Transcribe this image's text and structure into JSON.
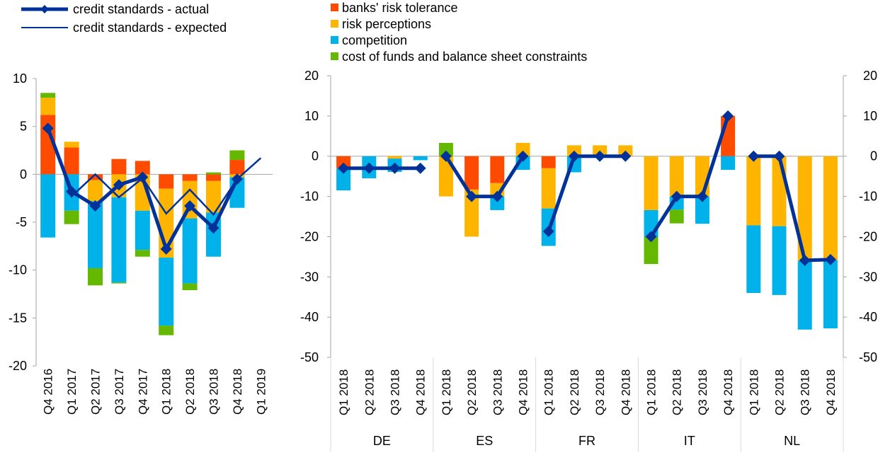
{
  "colors": {
    "banks_risk_tolerance": "#ff4b00",
    "risk_perceptions": "#ffb400",
    "competition": "#00b1ea",
    "cost_of_funds": "#65b800",
    "actual": "#003299",
    "expected": "#003299",
    "axis": "#a6a6a6",
    "gridline": "#d9d9d9"
  },
  "legend_left": [
    {
      "key": "actual",
      "label": "credit standards - actual"
    },
    {
      "key": "expected",
      "label": "credit standards - expected"
    }
  ],
  "legend_right": [
    {
      "key": "banks_risk_tolerance",
      "label": "banks' risk tolerance"
    },
    {
      "key": "risk_perceptions",
      "label": "risk perceptions"
    },
    {
      "key": "competition",
      "label": "competition"
    },
    {
      "key": "cost_of_funds",
      "label": "cost of funds and balance sheet constraints"
    }
  ],
  "chart_data": [
    {
      "type": "bar",
      "stacked": true,
      "ylim": [
        -20,
        10
      ],
      "yticks": [
        10,
        5,
        0,
        -5,
        -10,
        -15,
        -20
      ],
      "categories": [
        "Q4 2016",
        "Q1 2017",
        "Q2 2017",
        "Q3 2017",
        "Q4 2017",
        "Q1 2018",
        "Q2 2018",
        "Q3 2018",
        "Q4 2018",
        "Q1 2019"
      ],
      "series": [
        {
          "name": "banks' risk tolerance",
          "key": "banks_risk_tolerance",
          "values": [
            6.2,
            2.8,
            -0.6,
            1.6,
            1.4,
            -1.5,
            -0.7,
            -0.7,
            1.5,
            null
          ]
        },
        {
          "name": "risk perceptions",
          "key": "risk_perceptions",
          "values": [
            1.8,
            0.6,
            -2.2,
            -2.4,
            -3.8,
            -7.2,
            -3.9,
            -3.3,
            -0.3,
            null
          ]
        },
        {
          "name": "competition",
          "key": "competition",
          "values": [
            -6.6,
            -3.8,
            -7.0,
            -8.9,
            -4.1,
            -7.1,
            -6.8,
            -4.6,
            -3.2,
            null
          ]
        },
        {
          "name": "cost of funds and balance sheet constraints",
          "key": "cost_of_funds",
          "values": [
            0.5,
            -1.4,
            -1.8,
            -0.1,
            -0.7,
            -1.0,
            -0.7,
            0.2,
            1.0,
            null
          ]
        }
      ],
      "lines": [
        {
          "name": "credit standards - actual",
          "key": "actual",
          "values": [
            4.8,
            -1.8,
            -3.3,
            -1.1,
            -0.3,
            -7.8,
            -3.3,
            -5.6,
            -0.5,
            null
          ]
        },
        {
          "name": "credit standards - expected",
          "key": "expected",
          "values": [
            5.0,
            -2.3,
            0.0,
            -2.4,
            -0.4,
            -4.1,
            -1.6,
            -4.2,
            -0.5,
            1.7
          ]
        }
      ]
    },
    {
      "type": "bar",
      "stacked": true,
      "ylim": [
        -50,
        20
      ],
      "yticks": [
        20,
        10,
        0,
        -10,
        -20,
        -30,
        -40,
        -50
      ],
      "groups": [
        "DE",
        "ES",
        "FR",
        "IT",
        "NL"
      ],
      "categories": [
        "Q1 2018",
        "Q2 2018",
        "Q3 2018",
        "Q4 2018"
      ],
      "series": [
        {
          "name": "banks' risk tolerance",
          "key": "banks_risk_tolerance",
          "values": [
            [
              -3.0,
              0,
              0,
              0
            ],
            [
              0,
              -8.3,
              -6.7,
              0
            ],
            [
              -3.0,
              0,
              0,
              0
            ],
            [
              0,
              0,
              0,
              10.0
            ],
            [
              0,
              0,
              0,
              0
            ]
          ]
        },
        {
          "name": "risk perceptions",
          "key": "risk_perceptions",
          "values": [
            [
              0,
              0,
              -0.6,
              0
            ],
            [
              -10.0,
              -11.7,
              -3.3,
              3.3
            ],
            [
              -10.0,
              2.7,
              2.7,
              2.7
            ],
            [
              -13.4,
              -10.0,
              -10.0,
              0
            ],
            [
              -17.2,
              -17.4,
              -26.0,
              -25.8
            ]
          ]
        },
        {
          "name": "competition",
          "key": "competition",
          "values": [
            [
              -5.5,
              -5.5,
              -3.3,
              -1.0
            ],
            [
              0,
              0,
              -3.4,
              -3.4
            ],
            [
              -9.3,
              -4.0,
              0,
              0
            ],
            [
              -6.7,
              -3.3,
              -6.8,
              -3.4
            ],
            [
              -16.8,
              -17.1,
              -17.1,
              -17.0
            ]
          ]
        },
        {
          "name": "cost of funds and balance sheet constraints",
          "key": "cost_of_funds",
          "values": [
            [
              0,
              0,
              0,
              0
            ],
            [
              3.3,
              0,
              0,
              0
            ],
            [
              0,
              0,
              0,
              0
            ],
            [
              -6.7,
              -3.4,
              0,
              0
            ],
            [
              0,
              0,
              0,
              0
            ]
          ]
        }
      ],
      "lines": [
        {
          "name": "credit standards - actual",
          "key": "actual",
          "values": [
            [
              -3.0,
              -3.0,
              -3.0,
              -3.0
            ],
            [
              0,
              -10.0,
              -10.0,
              0
            ],
            [
              -18.7,
              0,
              0,
              0
            ],
            [
              -20.0,
              -10.0,
              -10.0,
              10.0
            ],
            [
              0,
              0,
              -25.9,
              -25.7
            ]
          ]
        }
      ]
    }
  ]
}
